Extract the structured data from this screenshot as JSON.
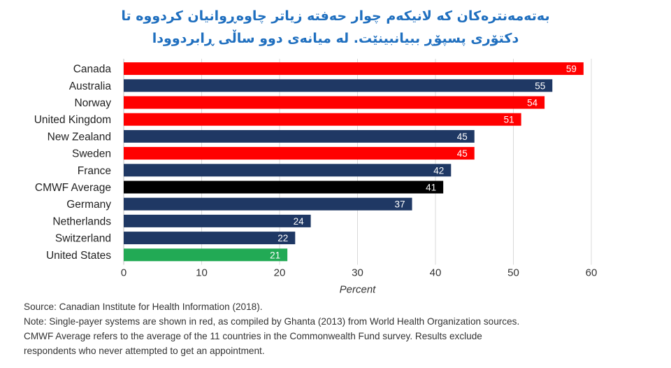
{
  "title_lines": [
    "بەتەمەنترەکان کە لانیکەم چوار حەفتە زیاتر چاوەڕوانیان کردووە تا",
    "دکتۆری پسپۆڕ ببیانبینێت. لە میانەی دوو ساڵی ڕابردوودا"
  ],
  "chart_data": {
    "type": "bar",
    "orientation": "horizontal",
    "categories": [
      "Canada",
      "Australia",
      "Norway",
      "United Kingdom",
      "New Zealand",
      "Sweden",
      "France",
      "CMWF Average",
      "Germany",
      "Netherlands",
      "Switzerland",
      "United States"
    ],
    "values": [
      59,
      55,
      54,
      51,
      45,
      45,
      42,
      41,
      37,
      24,
      22,
      21
    ],
    "bar_colors": [
      "#ff0000",
      "#1f3864",
      "#ff0000",
      "#ff0000",
      "#1f3864",
      "#ff0000",
      "#1f3864",
      "#000000",
      "#1f3864",
      "#1f3864",
      "#1f3864",
      "#22aa55"
    ],
    "xlabel": "Percent",
    "xlim": [
      0,
      60
    ],
    "xticks": [
      0,
      10,
      20,
      30,
      40,
      50,
      60
    ],
    "grid": true,
    "data_labels": true
  },
  "notes": {
    "source": "Source: Canadian Institute for Health Information (2018).",
    "note_line1": "Note: Single-payer systems are shown in red, as compiled by Ghanta (2013) from World Health Organization sources.",
    "note_line2": "CMWF Average refers to the average of the 11 countries in the Commonwealth Fund survey. Results exclude",
    "note_line3": "respondents who never attempted to get an appointment."
  }
}
